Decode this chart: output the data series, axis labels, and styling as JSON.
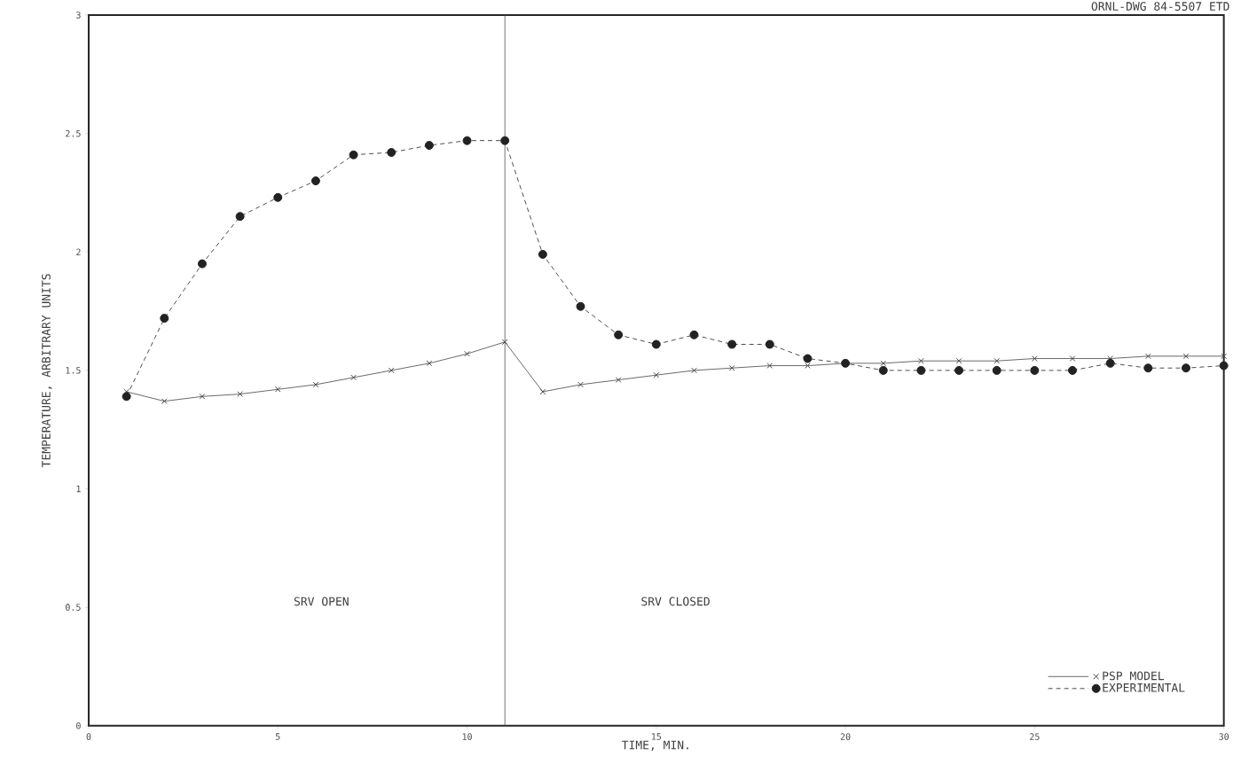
{
  "chart_data": {
    "type": "line",
    "xlabel": "TIME, MIN.",
    "ylabel": "TEMPERATURE, ARBITRARY UNITS",
    "x": [
      1,
      2,
      3,
      4,
      5,
      6,
      7,
      8,
      9,
      10,
      11,
      12,
      13,
      14,
      15,
      16,
      17,
      18,
      19,
      20,
      21,
      22,
      23,
      24,
      25,
      26,
      27,
      28,
      29,
      30
    ],
    "series": [
      {
        "name": "PSP MODEL",
        "color": "#444444",
        "marker": "cross",
        "line_style": "solid",
        "values": [
          1.41,
          1.37,
          1.39,
          1.4,
          1.42,
          1.44,
          1.47,
          1.5,
          1.53,
          1.57,
          1.62,
          1.41,
          1.44,
          1.46,
          1.48,
          1.5,
          1.51,
          1.52,
          1.52,
          1.53,
          1.53,
          1.54,
          1.54,
          1.54,
          1.55,
          1.55,
          1.55,
          1.56,
          1.56,
          1.56
        ]
      },
      {
        "name": "EXPERIMENTAL",
        "color": "#222222",
        "marker": "circle",
        "line_style": "dashed",
        "values": [
          1.39,
          1.72,
          1.95,
          2.15,
          2.23,
          2.3,
          2.41,
          2.42,
          2.45,
          2.47,
          2.47,
          1.99,
          1.77,
          1.65,
          1.61,
          1.65,
          1.61,
          1.61,
          1.55,
          1.53,
          1.5,
          1.5,
          1.5,
          1.5,
          1.5,
          1.5,
          1.53,
          1.51,
          1.51,
          1.52
        ]
      }
    ],
    "xlim": [
      0,
      30
    ],
    "ylim": [
      0,
      3
    ],
    "xticks": [
      0,
      5,
      10,
      15,
      20,
      25,
      30
    ],
    "yticks": [
      0,
      0.5,
      1,
      1.5,
      2,
      2.5,
      3
    ],
    "ref_lines": [
      {
        "axis": "x",
        "value": 11
      }
    ],
    "annotations": [
      "SRV OPEN",
      "SRV CLOSED",
      "ORNL-DWG 84-5507 ETD"
    ],
    "grid": false,
    "legend": "bottom right"
  }
}
